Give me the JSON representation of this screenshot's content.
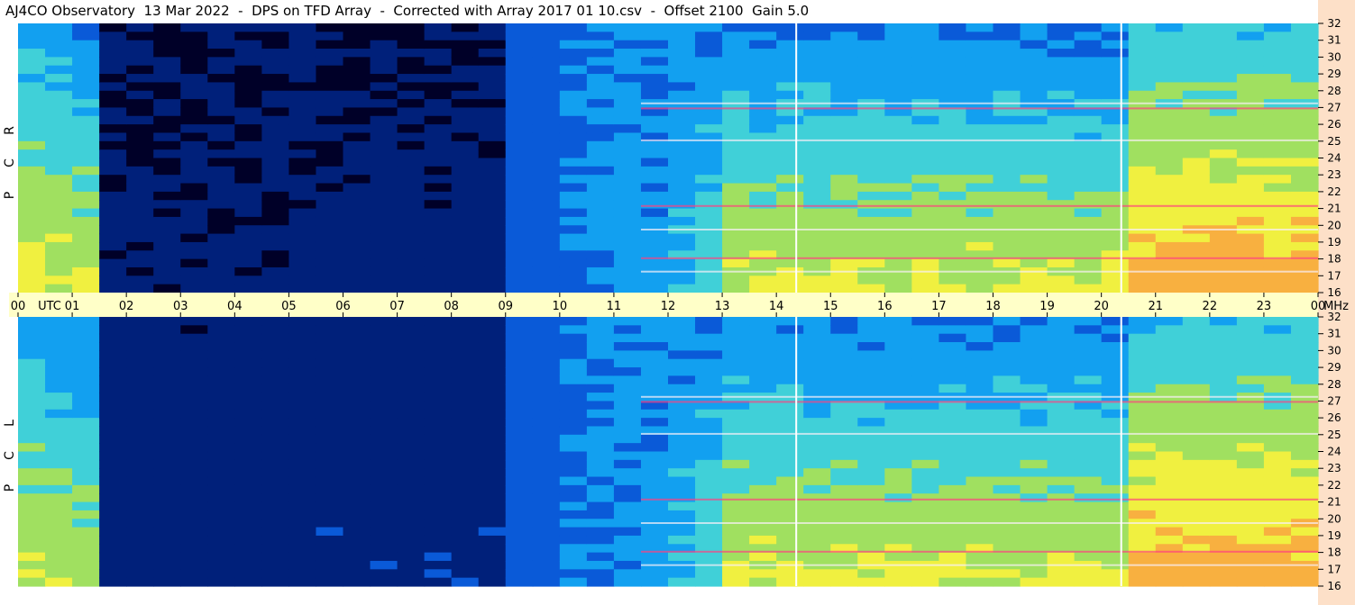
{
  "title": "AJ4CO Observatory  13 Mar 2022  -  DPS on TFD Array  -  Corrected with Array 2017 01 10.csv  -  Offset 2100  Gain 5.0",
  "colors": {
    "background": "#ffffff",
    "time_axis_band": "#ffffc8",
    "right_column": "#fde0c8",
    "colormap": [
      "#000028",
      "#00207a",
      "#0a5ad8",
      "#12a0f0",
      "#40d0d8",
      "#a0e060",
      "#f0f040",
      "#f8b040",
      "#ff4080",
      "#ffffff"
    ]
  },
  "chart_data": {
    "type": "heatmap",
    "title": "AJ4CO Observatory  13 Mar 2022  -  DPS on TFD Array  -  Corrected with Array 2017 01 10.csv  -  Offset 2100  Gain 5.0",
    "x_axis": {
      "label_utc": "UTC",
      "label_unit": "MHz",
      "range_hours": [
        0,
        24
      ],
      "tick_labels": [
        "00",
        "01",
        "02",
        "03",
        "04",
        "05",
        "06",
        "07",
        "08",
        "09",
        "10",
        "11",
        "12",
        "13",
        "14",
        "15",
        "16",
        "17",
        "18",
        "19",
        "20",
        "21",
        "22",
        "23",
        "00"
      ]
    },
    "y_axis": {
      "unit": "MHz",
      "range": [
        16,
        32
      ],
      "tick_labels": [
        "32",
        "31",
        "30",
        "29",
        "28",
        "27",
        "26",
        "25",
        "24",
        "23",
        "22",
        "21",
        "20",
        "19",
        "18",
        "17",
        "16"
      ]
    },
    "panels": [
      {
        "polarization": "RCP",
        "letters": [
          "R",
          "C",
          "P"
        ]
      },
      {
        "polarization": "LCP",
        "letters": [
          "L",
          "C",
          "P"
        ]
      }
    ],
    "time_markers_hours": [
      14.35,
      20.35
    ]
  }
}
